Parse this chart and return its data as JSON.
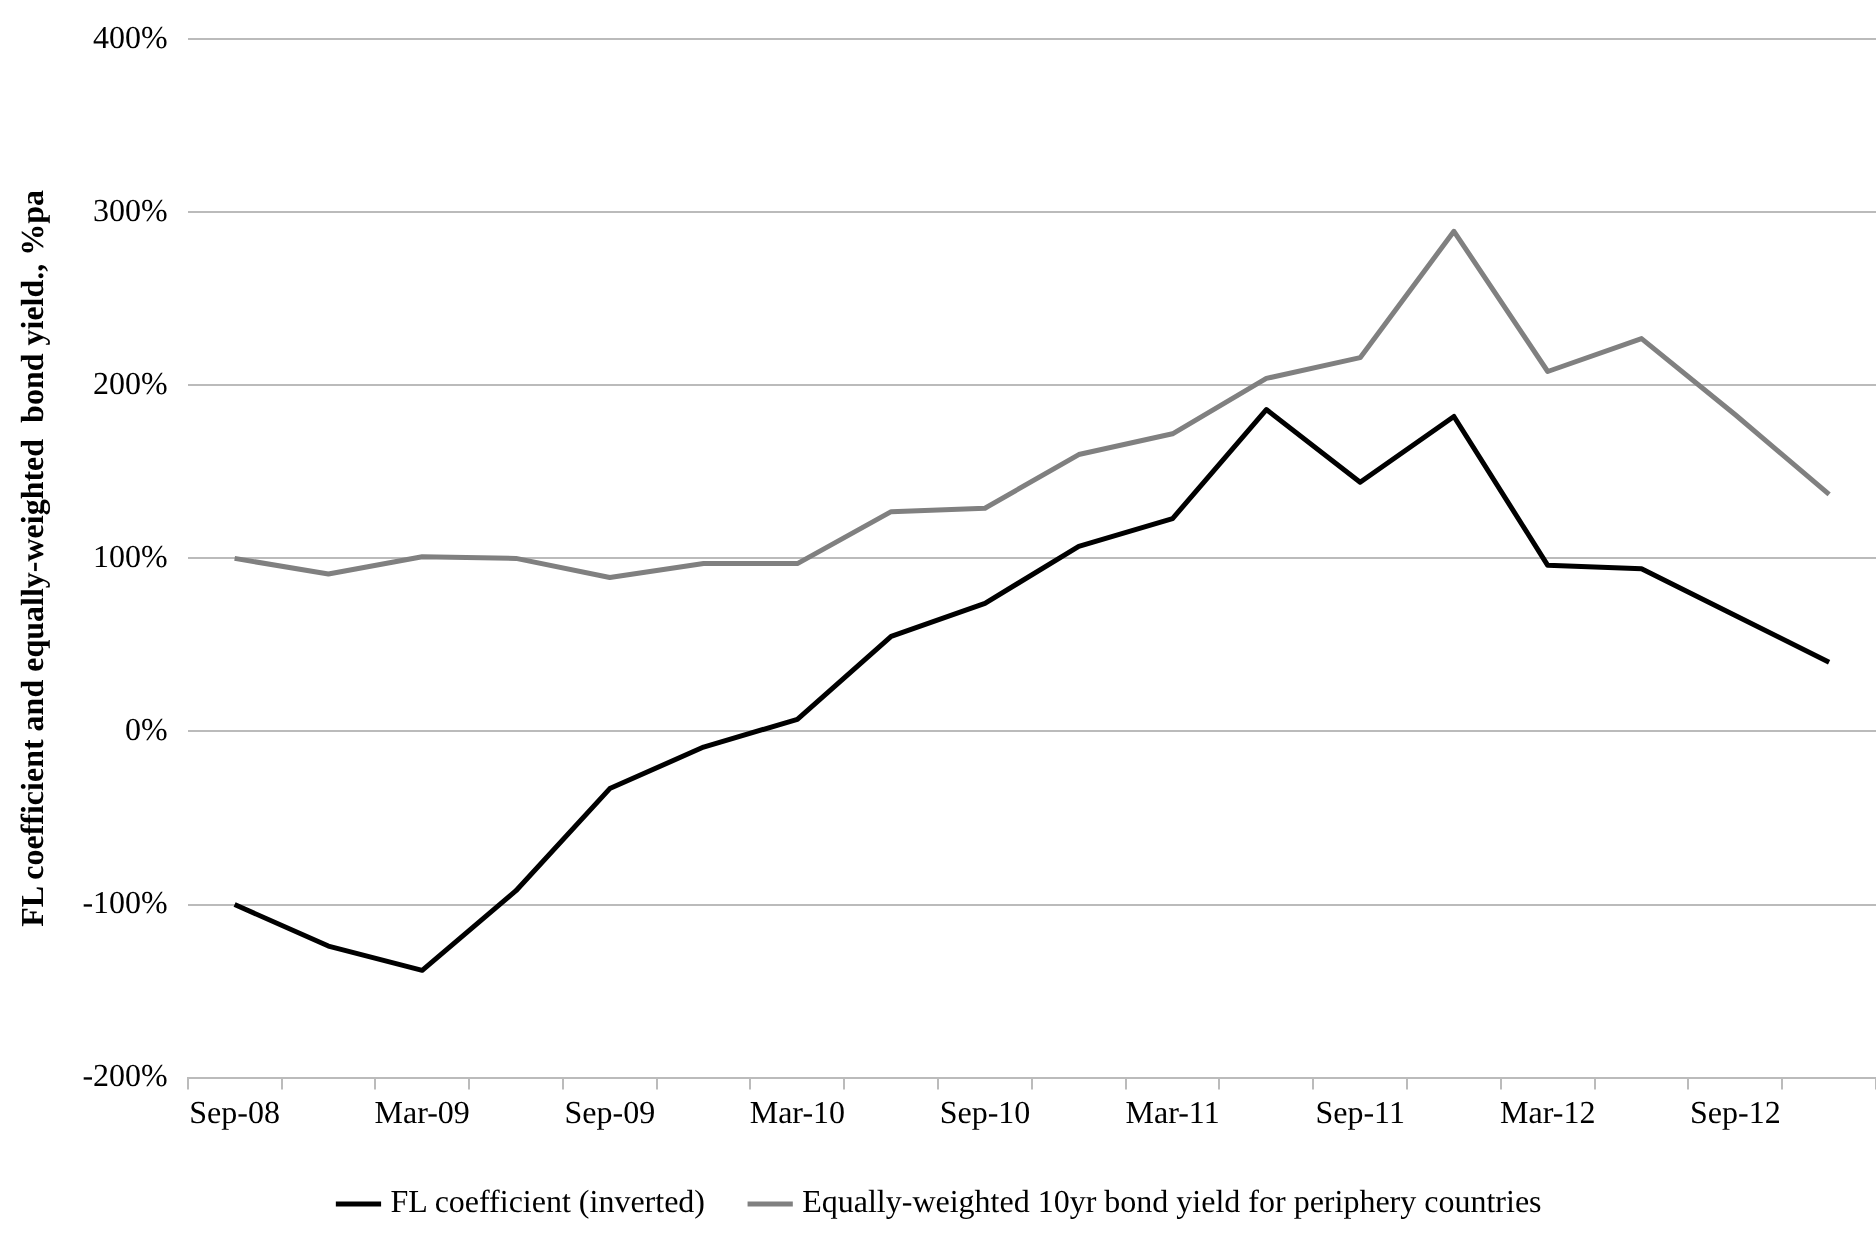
{
  "chart_data": {
    "type": "line",
    "ylabel": "FL coefficient and equally-weighted  bond yield., %pa",
    "categories": [
      "Sep-08",
      null,
      "Mar-09",
      null,
      "Sep-09",
      null,
      "Mar-10",
      null,
      "Sep-10",
      null,
      "Mar-11",
      null,
      "Sep-11",
      null,
      "Mar-12",
      null,
      "Sep-12",
      null
    ],
    "series": [
      {
        "name": "FL coefficient (inverted)",
        "color": "#000000",
        "values": [
          -100,
          -124,
          -138,
          -92,
          -33,
          -9,
          7,
          55,
          74,
          107,
          123,
          186,
          144,
          182,
          96,
          94,
          67,
          40
        ]
      },
      {
        "name": "Equally-weighted 10yr bond yield for periphery countries",
        "color": "#808080",
        "values": [
          100,
          91,
          101,
          100,
          89,
          97,
          97,
          127,
          129,
          160,
          172,
          204,
          216,
          289,
          208,
          227,
          183,
          137
        ]
      }
    ],
    "ylim": [
      -200,
      400
    ],
    "yticks": [
      {
        "value": -200,
        "label": "-200%"
      },
      {
        "value": -100,
        "label": "-100%"
      },
      {
        "value": 0,
        "label": "0%"
      },
      {
        "value": 100,
        "label": "100%"
      },
      {
        "value": 200,
        "label": "200%"
      },
      {
        "value": 300,
        "label": "300%"
      },
      {
        "value": 400,
        "label": "400%"
      }
    ],
    "grid": "y",
    "legend": "bottom",
    "marker": "none",
    "line_style": "solid"
  }
}
